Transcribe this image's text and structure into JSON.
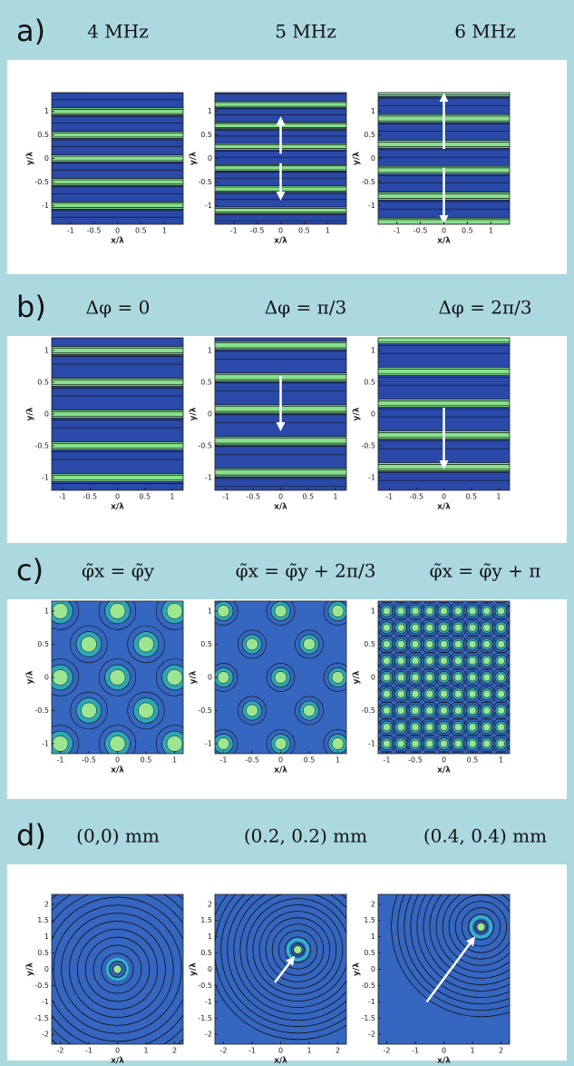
{
  "rows": [
    {
      "label": "a)",
      "columns": [
        "4 MHz",
        "5 MHz",
        "6 MHz"
      ],
      "axes": {
        "xlabel": "x/λ",
        "ylabel": "y/λ",
        "xlim": [
          -1.4,
          1.4
        ],
        "ylim": [
          -1.4,
          1.4
        ],
        "xticks": [
          -1,
          -0.5,
          0,
          0.5,
          1
        ],
        "yticks": [
          -1,
          -0.5,
          0,
          0.5,
          1
        ]
      }
    },
    {
      "label": "b)",
      "columns": [
        "Δφ = 0",
        "Δφ = π/3",
        "Δφ = 2π/3"
      ],
      "axes": {
        "xlabel": "x/λ",
        "ylabel": "y/λ",
        "xlim": [
          -1.2,
          1.2
        ],
        "ylim": [
          -1.2,
          1.2
        ],
        "xticks": [
          -1,
          -0.5,
          0,
          0.5,
          1
        ],
        "yticks": [
          -1,
          -0.5,
          0,
          0.5,
          1
        ]
      }
    },
    {
      "label": "c)",
      "columns": [
        "φ̃x = φ̃y",
        "φ̃x = φ̃y + 2π/3",
        "φ̃x = φ̃y + π"
      ],
      "axes": {
        "xlabel": "x/λ",
        "ylabel": "y/λ",
        "xlim": [
          -1.15,
          1.15
        ],
        "ylim": [
          -1.15,
          1.15
        ],
        "xticks": [
          -1,
          -0.5,
          0,
          0.5,
          1
        ],
        "yticks": [
          -1,
          -0.5,
          0,
          0.5,
          1
        ]
      }
    },
    {
      "label": "d)",
      "columns": [
        "(0,0) mm",
        "(0.2, 0.2) mm",
        "(0.4, 0.4) mm"
      ],
      "axes": {
        "xlabel": "x/λ",
        "ylabel": "y/λ",
        "xlim": [
          -2.3,
          2.3
        ],
        "ylim": [
          -2.3,
          2.3
        ],
        "xticks": [
          -2,
          -1,
          0,
          1,
          2
        ],
        "yticks": [
          -2,
          -1.5,
          -1,
          -0.5,
          0,
          0.5,
          1,
          1.5,
          2
        ]
      }
    }
  ]
}
